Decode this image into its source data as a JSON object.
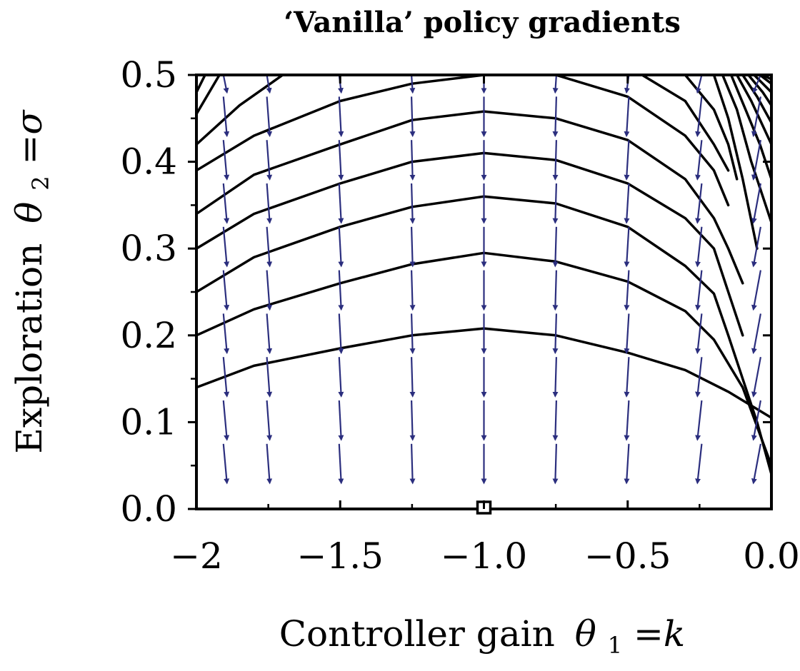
{
  "chart_data": {
    "type": "contour",
    "title": "‘Vanilla’ policy gradients",
    "xlabel": {
      "text": "Controller gain",
      "symbol": "θ",
      "subscript": "1",
      "rhs": "=k"
    },
    "ylabel": {
      "text": "Exploration",
      "symbol": "θ",
      "subscript": "2",
      "rhs": "=σ"
    },
    "xlim": [
      -2.0,
      0.0
    ],
    "ylim": [
      0.0,
      0.5
    ],
    "x_ticks": [
      {
        "value": -2.0,
        "label": "−2"
      },
      {
        "value": -1.5,
        "label": "−1.5"
      },
      {
        "value": -1.0,
        "label": "−1.0"
      },
      {
        "value": -0.5,
        "label": "−0.5"
      },
      {
        "value": 0.0,
        "label": "0.0"
      }
    ],
    "y_ticks": [
      {
        "value": 0.0,
        "label": "0.0"
      },
      {
        "value": 0.1,
        "label": "0.1"
      },
      {
        "value": 0.2,
        "label": "0.2"
      },
      {
        "value": 0.3,
        "label": "0.3"
      },
      {
        "value": 0.4,
        "label": "0.4"
      },
      {
        "value": 0.5,
        "label": "0.5"
      }
    ],
    "grid": false,
    "optimum_marker": {
      "x": -1.0,
      "y": 0.0,
      "shape": "square"
    },
    "contour_color": "#000000",
    "arrow_color": "#2b2e7e",
    "contours": [
      [
        [
          -2.0,
          0.14
        ],
        [
          -1.8,
          0.165
        ],
        [
          -1.5,
          0.185
        ],
        [
          -1.25,
          0.2
        ],
        [
          -1.0,
          0.208
        ],
        [
          -0.75,
          0.2
        ],
        [
          -0.5,
          0.18
        ],
        [
          -0.3,
          0.16
        ],
        [
          -0.15,
          0.135
        ],
        [
          0.0,
          0.105
        ]
      ],
      [
        [
          -2.0,
          0.2
        ],
        [
          -1.8,
          0.23
        ],
        [
          -1.5,
          0.26
        ],
        [
          -1.25,
          0.282
        ],
        [
          -1.0,
          0.295
        ],
        [
          -0.75,
          0.285
        ],
        [
          -0.5,
          0.262
        ],
        [
          -0.3,
          0.228
        ],
        [
          -0.2,
          0.195
        ],
        [
          -0.1,
          0.14
        ],
        [
          0.0,
          0.05
        ]
      ],
      [
        [
          -2.0,
          0.25
        ],
        [
          -1.8,
          0.29
        ],
        [
          -1.5,
          0.325
        ],
        [
          -1.25,
          0.348
        ],
        [
          -1.0,
          0.36
        ],
        [
          -0.75,
          0.352
        ],
        [
          -0.5,
          0.325
        ],
        [
          -0.3,
          0.28
        ],
        [
          -0.2,
          0.248
        ],
        [
          -0.15,
          0.2
        ],
        [
          -0.05,
          0.1
        ],
        [
          0.0,
          0.04
        ]
      ],
      [
        [
          -2.0,
          0.3
        ],
        [
          -1.8,
          0.34
        ],
        [
          -1.5,
          0.375
        ],
        [
          -1.25,
          0.4
        ],
        [
          -1.0,
          0.41
        ],
        [
          -0.75,
          0.402
        ],
        [
          -0.5,
          0.375
        ],
        [
          -0.3,
          0.335
        ],
        [
          -0.2,
          0.3
        ],
        [
          -0.15,
          0.25
        ],
        [
          -0.1,
          0.2
        ]
      ],
      [
        [
          -2.0,
          0.34
        ],
        [
          -1.8,
          0.385
        ],
        [
          -1.5,
          0.42
        ],
        [
          -1.25,
          0.448
        ],
        [
          -1.0,
          0.458
        ],
        [
          -0.75,
          0.45
        ],
        [
          -0.5,
          0.425
        ],
        [
          -0.3,
          0.38
        ],
        [
          -0.2,
          0.335
        ],
        [
          -0.15,
          0.3
        ],
        [
          -0.1,
          0.26
        ]
      ],
      [
        [
          -2.0,
          0.39
        ],
        [
          -1.8,
          0.43
        ],
        [
          -1.5,
          0.47
        ],
        [
          -1.25,
          0.49
        ],
        [
          -1.0,
          0.5
        ],
        [
          -0.75,
          0.5
        ],
        [
          -0.5,
          0.475
        ],
        [
          -0.3,
          0.43
        ],
        [
          -0.2,
          0.39
        ],
        [
          -0.15,
          0.35
        ]
      ],
      [
        [
          -2.0,
          0.42
        ],
        [
          -1.85,
          0.465
        ],
        [
          -1.7,
          0.5
        ]
      ],
      [
        [
          -2.0,
          0.455
        ],
        [
          -1.92,
          0.5
        ]
      ],
      [
        [
          -2.0,
          0.48
        ],
        [
          -1.97,
          0.5
        ]
      ],
      [
        [
          -1.35,
          0.5
        ],
        [
          -1.2,
          0.5
        ]
      ],
      [
        [
          -0.7,
          0.5
        ],
        [
          -0.55,
          0.5
        ]
      ],
      [
        [
          -0.45,
          0.5
        ],
        [
          -0.3,
          0.47
        ],
        [
          -0.2,
          0.42
        ],
        [
          -0.15,
          0.39
        ]
      ],
      [
        [
          -0.3,
          0.5
        ],
        [
          -0.2,
          0.46
        ],
        [
          -0.15,
          0.42
        ],
        [
          -0.12,
          0.38
        ]
      ],
      [
        [
          -0.2,
          0.5
        ],
        [
          -0.15,
          0.45
        ],
        [
          -0.1,
          0.38
        ],
        [
          -0.05,
          0.3
        ]
      ],
      [
        [
          -0.17,
          0.5
        ],
        [
          -0.12,
          0.46
        ],
        [
          -0.07,
          0.4
        ],
        [
          0.0,
          0.33
        ]
      ],
      [
        [
          -0.14,
          0.5
        ],
        [
          -0.09,
          0.46
        ],
        [
          -0.04,
          0.42
        ],
        [
          0.0,
          0.38
        ]
      ],
      [
        [
          -0.12,
          0.5
        ],
        [
          -0.07,
          0.47
        ],
        [
          0.0,
          0.42
        ]
      ],
      [
        [
          -0.1,
          0.5
        ],
        [
          -0.05,
          0.475
        ],
        [
          0.0,
          0.445
        ]
      ],
      [
        [
          -0.08,
          0.5
        ],
        [
          -0.03,
          0.48
        ],
        [
          0.0,
          0.465
        ]
      ],
      [
        [
          -0.06,
          0.5
        ],
        [
          0.0,
          0.48
        ]
      ],
      [
        [
          -0.04,
          0.5
        ],
        [
          0.0,
          0.49
        ]
      ],
      [
        [
          -0.03,
          0.5
        ],
        [
          0.0,
          0.495
        ]
      ]
    ],
    "arrow_columns": [
      -1.9,
      -1.75,
      -1.5,
      -1.25,
      -1.0,
      -0.75,
      -0.5,
      -0.25,
      -0.05
    ],
    "arrow_rows": [
      0.5,
      0.45,
      0.4,
      0.35,
      0.3,
      0.25,
      0.2,
      0.15,
      0.1,
      0.05,
      0.0
    ],
    "arrow_length_y": 0.04,
    "arrow_slopes": [
      0.012,
      0.01,
      0.007,
      0.004,
      0.0,
      -0.004,
      -0.008,
      -0.015,
      -0.025
    ]
  }
}
